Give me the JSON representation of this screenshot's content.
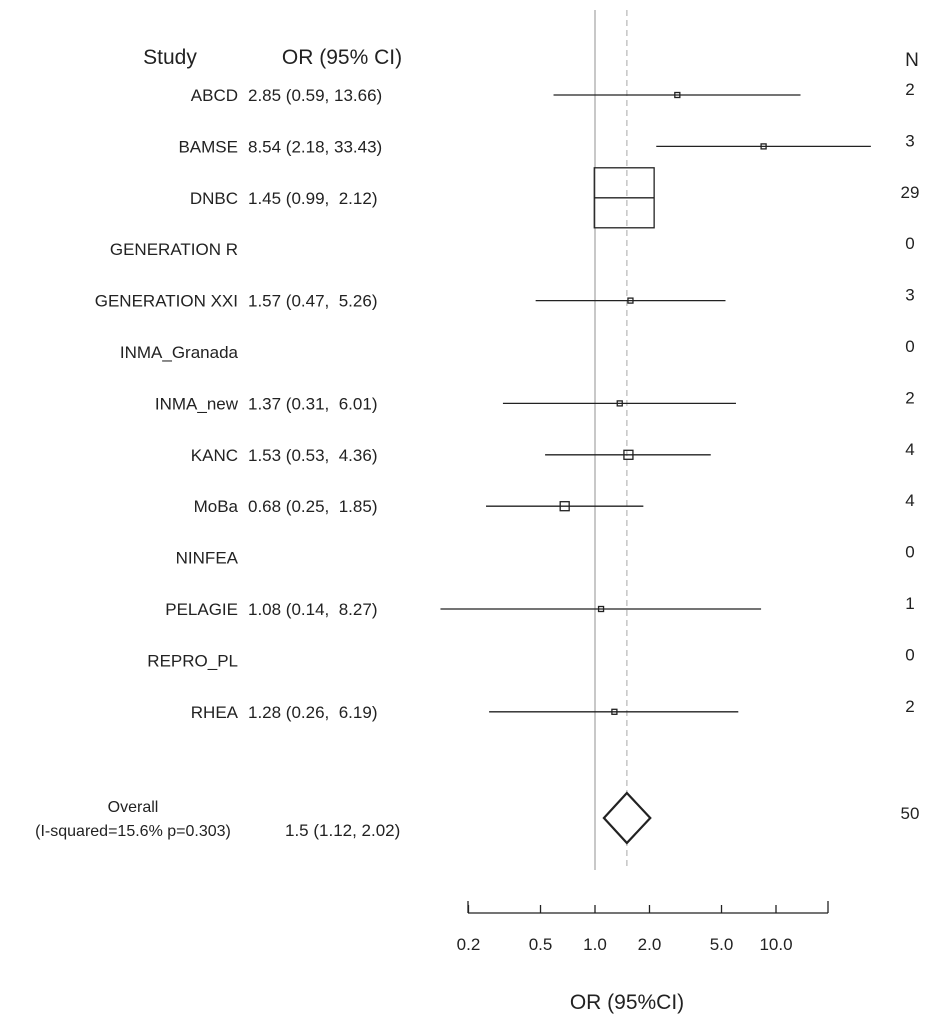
{
  "chart_data": {
    "type": "forest",
    "headers": {
      "study": "Study",
      "or": "OR (95% CI)",
      "n": "N"
    },
    "xlabel": "OR (95%CI)",
    "x_scale": "log",
    "reference_line": 1.0,
    "overall_line": 1.5,
    "xticks": [
      {
        "value": 0.2,
        "label": "0.2"
      },
      {
        "value": 0.5,
        "label": "0.5"
      },
      {
        "value": 1.0,
        "label": "1.0"
      },
      {
        "value": 2.0,
        "label": "2.0"
      },
      {
        "value": 5.0,
        "label": "5.0"
      },
      {
        "value": 10.0,
        "label": "10.0"
      }
    ],
    "studies": [
      {
        "name": "ABCD",
        "or_text": "2.85 (0.59, 13.66)",
        "or": 2.85,
        "lower": 0.59,
        "upper": 13.66,
        "n": "2"
      },
      {
        "name": "BAMSE",
        "or_text": "8.54 (2.18, 33.43)",
        "or": 8.54,
        "lower": 2.18,
        "upper": 33.43,
        "n": "3"
      },
      {
        "name": "DNBC",
        "or_text": "1.45 (0.99,  2.12)",
        "or": 1.45,
        "lower": 0.99,
        "upper": 2.12,
        "n": "29"
      },
      {
        "name": "GENERATION R",
        "or_text": "",
        "or": null,
        "lower": null,
        "upper": null,
        "n": "0"
      },
      {
        "name": "GENERATION XXI",
        "or_text": "1.57 (0.47,  5.26)",
        "or": 1.57,
        "lower": 0.47,
        "upper": 5.26,
        "n": "3"
      },
      {
        "name": "INMA_Granada",
        "or_text": "",
        "or": null,
        "lower": null,
        "upper": null,
        "n": "0"
      },
      {
        "name": "INMA_new",
        "or_text": "1.37 (0.31,  6.01)",
        "or": 1.37,
        "lower": 0.31,
        "upper": 6.01,
        "n": "2"
      },
      {
        "name": "KANC",
        "or_text": "1.53 (0.53,  4.36)",
        "or": 1.53,
        "lower": 0.53,
        "upper": 4.36,
        "n": "4"
      },
      {
        "name": "MoBa",
        "or_text": "0.68 (0.25,  1.85)",
        "or": 0.68,
        "lower": 0.25,
        "upper": 1.85,
        "n": "4"
      },
      {
        "name": "NINFEA",
        "or_text": "",
        "or": null,
        "lower": null,
        "upper": null,
        "n": "0"
      },
      {
        "name": "PELAGIE",
        "or_text": "1.08 (0.14,  8.27)",
        "or": 1.08,
        "lower": 0.14,
        "upper": 8.27,
        "n": "1"
      },
      {
        "name": "REPRO_PL",
        "or_text": "",
        "or": null,
        "lower": null,
        "upper": null,
        "n": "0"
      },
      {
        "name": "RHEA",
        "or_text": "1.28 (0.26,  6.19)",
        "or": 1.28,
        "lower": 0.26,
        "upper": 6.19,
        "n": "2"
      }
    ],
    "overall": {
      "label_line1": "Overall",
      "label_line2": "(I-squared=15.6% p=0.303)",
      "or_text": "1.5 (1.12, 2.02)",
      "or": 1.5,
      "lower": 1.12,
      "upper": 2.02,
      "n": "50"
    },
    "colors": {
      "ink": "#222222",
      "reference": "#bbbbbb",
      "overall_line": "#bbbbbb"
    }
  }
}
